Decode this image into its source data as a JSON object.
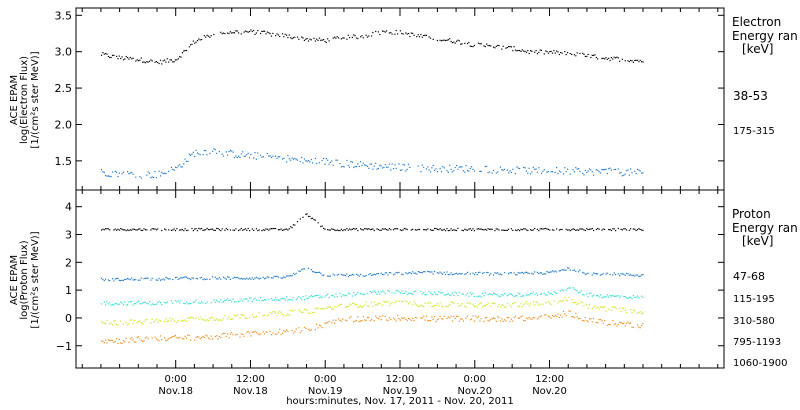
{
  "colors": {
    "frame": "#000000",
    "grid_bg": "#ffffff",
    "electron_38_53": "#000000",
    "electron_175_315": "#1f78d0",
    "proton_47_68": "#000000",
    "proton_115_195": "#1f78d0",
    "proton_310_580": "#2ee0d0",
    "proton_795_1193": "#c9e81a",
    "proton_1060_1900": "#f08c1a"
  },
  "chart_data": [
    {
      "type": "scatter",
      "panel": "electron",
      "ylabel_lines": [
        "ACE EPAM",
        "log(Electron Flux)",
        "[1/(cm²s ster MeV)]"
      ],
      "ylim": [
        1.1,
        3.6
      ],
      "yticks": [
        1.5,
        2.0,
        2.5,
        3.0,
        3.5
      ],
      "ytick_labels": [
        "1.5",
        "2.0",
        "2.5",
        "3.0",
        "3.5"
      ],
      "legend_title_lines": [
        "Electron",
        "Energy ran",
        "[keV]"
      ],
      "series": [
        {
          "name": "38-53",
          "color_key": "electron_38_53",
          "x_hours": [
            0,
            3,
            6,
            9,
            12,
            15,
            18,
            21,
            24,
            27,
            30,
            33,
            36,
            39,
            42,
            45,
            48,
            51,
            54,
            57,
            60,
            63,
            66,
            69,
            72,
            75,
            78,
            81,
            84,
            87
          ],
          "values": [
            2.97,
            2.92,
            2.9,
            2.86,
            2.9,
            3.15,
            3.25,
            3.28,
            3.28,
            3.25,
            3.22,
            3.18,
            3.16,
            3.2,
            3.22,
            3.28,
            3.27,
            3.22,
            3.18,
            3.15,
            3.1,
            3.08,
            3.05,
            3.0,
            3.0,
            2.98,
            2.95,
            2.92,
            2.9,
            2.88
          ],
          "scatter": 0.03
        },
        {
          "name": "175-315",
          "color_key": "electron_175_315",
          "x_hours": [
            0,
            3,
            6,
            9,
            12,
            15,
            18,
            21,
            24,
            27,
            30,
            33,
            36,
            39,
            42,
            45,
            48,
            51,
            54,
            57,
            60,
            63,
            66,
            69,
            72,
            75,
            78,
            81,
            84,
            87
          ],
          "values": [
            1.35,
            1.33,
            1.32,
            1.32,
            1.4,
            1.62,
            1.65,
            1.6,
            1.58,
            1.56,
            1.54,
            1.5,
            1.5,
            1.47,
            1.45,
            1.43,
            1.42,
            1.41,
            1.4,
            1.4,
            1.4,
            1.39,
            1.38,
            1.37,
            1.37,
            1.37,
            1.36,
            1.36,
            1.35,
            1.35
          ],
          "scatter": 0.05
        }
      ]
    },
    {
      "type": "scatter",
      "panel": "proton",
      "ylabel_lines": [
        "ACE EPAM",
        "log(Proton Flux)",
        "[1/(cm²s ster MeV)]"
      ],
      "ylim": [
        -1.8,
        4.6
      ],
      "yticks": [
        -1,
        0,
        1,
        2,
        3,
        4
      ],
      "ytick_labels": [
        "−1",
        "0",
        "1",
        "2",
        "3",
        "4"
      ],
      "legend_title_lines": [
        "Proton",
        "Energy ran",
        "[keV]"
      ],
      "series": [
        {
          "name": "47-68",
          "color_key": "proton_47_68",
          "x_hours": [
            0,
            3,
            6,
            9,
            12,
            15,
            18,
            21,
            24,
            27,
            30,
            33,
            36,
            39,
            42,
            45,
            48,
            51,
            54,
            57,
            60,
            63,
            66,
            69,
            72,
            75,
            78,
            81,
            84,
            87
          ],
          "values": [
            3.2,
            3.2,
            3.2,
            3.2,
            3.2,
            3.2,
            3.2,
            3.2,
            3.2,
            3.2,
            3.2,
            3.75,
            3.2,
            3.2,
            3.2,
            3.2,
            3.2,
            3.2,
            3.2,
            3.2,
            3.2,
            3.2,
            3.2,
            3.2,
            3.2,
            3.2,
            3.2,
            3.2,
            3.2,
            3.2
          ],
          "scatter": 0.04
        },
        {
          "name": "115-195",
          "color_key": "proton_115_195",
          "x_hours": [
            0,
            3,
            6,
            9,
            12,
            15,
            18,
            21,
            24,
            27,
            30,
            33,
            36,
            39,
            42,
            45,
            48,
            51,
            54,
            57,
            60,
            63,
            66,
            69,
            72,
            75,
            78,
            81,
            84,
            87
          ],
          "values": [
            1.4,
            1.4,
            1.42,
            1.42,
            1.45,
            1.45,
            1.45,
            1.45,
            1.45,
            1.45,
            1.5,
            1.8,
            1.55,
            1.55,
            1.55,
            1.6,
            1.62,
            1.65,
            1.65,
            1.6,
            1.62,
            1.6,
            1.6,
            1.62,
            1.65,
            1.8,
            1.62,
            1.6,
            1.58,
            1.55
          ],
          "scatter": 0.05
        },
        {
          "name": "310-580",
          "color_key": "proton_310_580",
          "x_hours": [
            0,
            3,
            6,
            9,
            12,
            15,
            18,
            21,
            24,
            27,
            30,
            33,
            36,
            39,
            42,
            45,
            48,
            51,
            54,
            57,
            60,
            63,
            66,
            69,
            72,
            75,
            78,
            81,
            84,
            87
          ],
          "values": [
            0.55,
            0.55,
            0.55,
            0.55,
            0.6,
            0.6,
            0.62,
            0.65,
            0.68,
            0.7,
            0.72,
            0.75,
            0.8,
            0.85,
            0.9,
            0.95,
            0.95,
            0.92,
            0.9,
            0.88,
            0.85,
            0.85,
            0.85,
            0.88,
            0.9,
            1.1,
            0.85,
            0.8,
            0.78,
            0.75
          ],
          "scatter": 0.07
        },
        {
          "name": "795-1193",
          "color_key": "proton_795_1193",
          "x_hours": [
            0,
            3,
            6,
            9,
            12,
            15,
            18,
            21,
            24,
            27,
            30,
            33,
            36,
            39,
            42,
            45,
            48,
            51,
            54,
            57,
            60,
            63,
            66,
            69,
            72,
            75,
            78,
            81,
            84,
            87
          ],
          "values": [
            -0.15,
            -0.15,
            -0.12,
            -0.1,
            -0.05,
            0.0,
            0.0,
            0.05,
            0.1,
            0.15,
            0.2,
            0.25,
            0.35,
            0.45,
            0.5,
            0.55,
            0.55,
            0.52,
            0.5,
            0.5,
            0.48,
            0.48,
            0.5,
            0.52,
            0.55,
            0.7,
            0.45,
            0.35,
            0.3,
            0.25
          ],
          "scatter": 0.09
        },
        {
          "name": "1060-1900",
          "color_key": "proton_1060_1900",
          "x_hours": [
            0,
            3,
            6,
            9,
            12,
            15,
            18,
            21,
            24,
            27,
            30,
            33,
            36,
            39,
            42,
            45,
            48,
            51,
            54,
            57,
            60,
            63,
            66,
            69,
            72,
            75,
            78,
            81,
            84,
            87
          ],
          "values": [
            -0.8,
            -0.8,
            -0.75,
            -0.72,
            -0.7,
            -0.68,
            -0.65,
            -0.6,
            -0.55,
            -0.5,
            -0.45,
            -0.4,
            -0.2,
            -0.05,
            0.0,
            0.0,
            0.02,
            0.0,
            -0.02,
            0.0,
            0.0,
            -0.02,
            0.0,
            0.0,
            0.05,
            0.2,
            -0.05,
            -0.15,
            -0.2,
            -0.25
          ],
          "scatter": 0.1
        }
      ]
    }
  ],
  "x_axis": {
    "range_hours": [
      -4,
      100
    ],
    "xlabel": "hours:minutes, Nov. 17, 2011 - Nov. 20, 2011",
    "ticks": [
      {
        "hour": 12,
        "line1": "0:00",
        "line2": "Nov.18"
      },
      {
        "hour": 24,
        "line1": "12:00",
        "line2": "Nov.18"
      },
      {
        "hour": 36,
        "line1": "0:00",
        "line2": "Nov.19"
      },
      {
        "hour": 48,
        "line1": "12:00",
        "line2": "Nov.19"
      },
      {
        "hour": 60,
        "line1": "0:00",
        "line2": "Nov.20"
      },
      {
        "hour": 72,
        "line1": "12:00",
        "line2": "Nov.20"
      }
    ],
    "minor_tick_step_hours": 3
  }
}
